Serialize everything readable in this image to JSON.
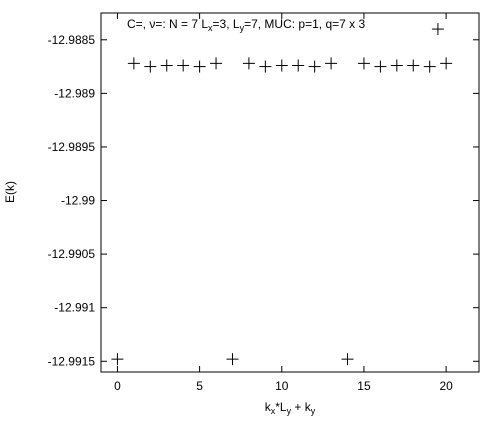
{
  "chart_data": {
    "type": "scatter",
    "title": "",
    "annotation": {
      "prefix": "C=, ν=:  N = 7  L",
      "lx_sub": "x",
      "lx_val": "=3, L",
      "ly_sub": "y",
      "rest": "=7, MUC: p=1, q=7 x 3"
    },
    "xlabel": {
      "p1": "k",
      "s1": "x",
      "p2": "*L",
      "s2": "y",
      "p3": " + k",
      "s3": "y"
    },
    "ylabel": "E(k)",
    "xlim": [
      -1,
      22
    ],
    "ylim": [
      -12.9916,
      -12.98825
    ],
    "xticks": [
      0,
      5,
      10,
      15,
      20
    ],
    "xtick_labels": [
      "0",
      "5",
      "10",
      "15",
      "20"
    ],
    "yticks": [
      -12.9885,
      -12.989,
      -12.9895,
      -12.99,
      -12.9905,
      -12.991,
      -12.9915
    ],
    "ytick_labels": [
      "-12.9885",
      "-12.989",
      "-12.9895",
      "-12.99",
      "-12.9905",
      "-12.991",
      "-12.9915"
    ],
    "marker": "plus",
    "grid": false,
    "legend": "none",
    "series": [
      {
        "x": [
          0,
          1,
          2,
          3,
          4,
          5,
          6,
          7,
          8,
          9,
          10,
          11,
          12,
          13,
          14,
          15,
          16,
          17,
          18,
          19,
          20
        ],
        "y": [
          -12.99148,
          -12.98872,
          -12.98875,
          -12.98874,
          -12.98874,
          -12.98875,
          -12.98872,
          -12.99148,
          -12.98872,
          -12.98875,
          -12.98874,
          -12.98874,
          -12.98875,
          -12.98872,
          -12.99148,
          -12.98872,
          -12.98875,
          -12.98874,
          -12.98874,
          -12.98875,
          -12.98872
        ],
        "color": "#000000"
      },
      {
        "x": [
          19.5
        ],
        "y": [
          -12.9884
        ],
        "color": "#000000"
      }
    ]
  }
}
